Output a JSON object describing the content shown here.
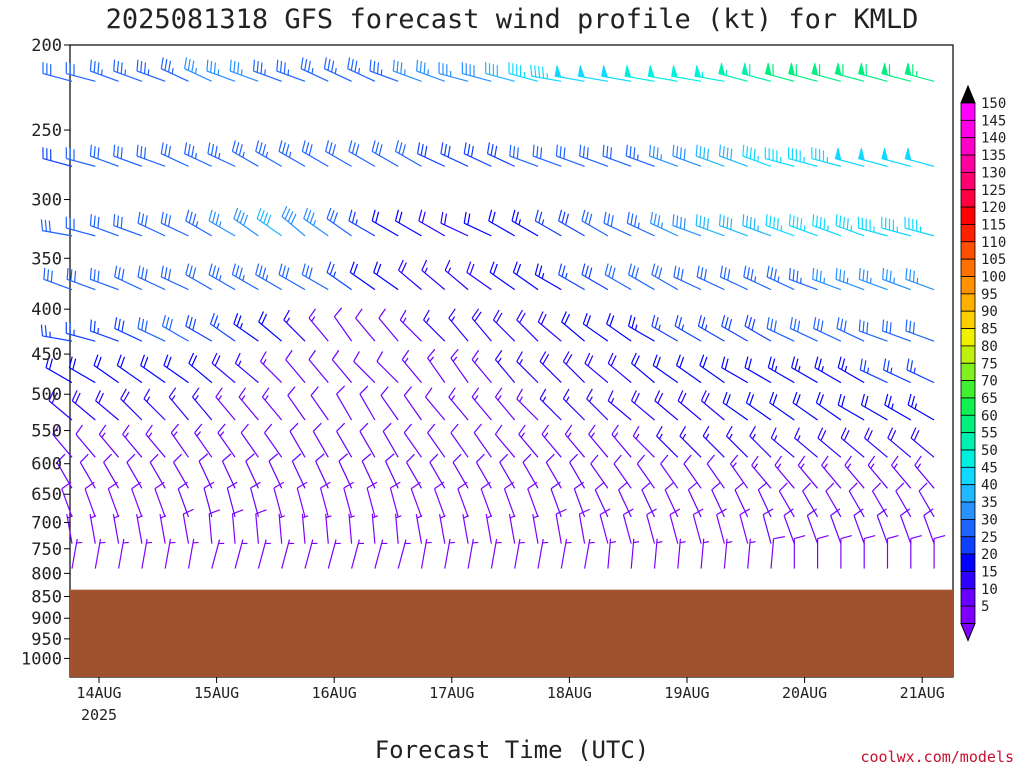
{
  "chart_data": {
    "type": "wind_profile",
    "title": "2025081318 GFS forecast wind profile (kt) for KMLD",
    "xlabel": "Forecast Time (UTC)",
    "ylabel": "",
    "y_ticks": [
      "200",
      "250",
      "300",
      "350",
      "400",
      "450",
      "500",
      "550",
      "600",
      "650",
      "700",
      "750",
      "800",
      "850",
      "900",
      "950",
      "1000"
    ],
    "x_ticks": [
      "14AUG",
      "15AUG",
      "16AUG",
      "17AUG",
      "18AUG",
      "19AUG",
      "20AUG",
      "21AUG"
    ],
    "x_year": "2025",
    "credit": "coolwx.com/models",
    "colorbar_levels": [
      5,
      10,
      15,
      20,
      25,
      30,
      35,
      40,
      45,
      50,
      55,
      60,
      65,
      70,
      75,
      80,
      85,
      90,
      95,
      100,
      105,
      110,
      115,
      120,
      125,
      130,
      135,
      140,
      145,
      150
    ],
    "colorbar_colors": [
      "#8000ff",
      "#6a00ff",
      "#3000ff",
      "#0000ff",
      "#1040ff",
      "#1e64ff",
      "#2890ff",
      "#20b8ff",
      "#10d8ff",
      "#00f0e0",
      "#00f0b0",
      "#00f080",
      "#10f050",
      "#40f030",
      "#80f020",
      "#c0f010",
      "#f0f000",
      "#ffd000",
      "#ffb000",
      "#ff9000",
      "#ff7000",
      "#ff5000",
      "#ff2000",
      "#ff0000",
      "#ff0040",
      "#ff0070",
      "#ff00a0",
      "#ff00c8",
      "#ff00e8",
      "#ff00ff"
    ],
    "ground_color": "#a0522d",
    "surface_pressure_hpa": 835,
    "pressure_levels": [
      220,
      275,
      330,
      380,
      435,
      485,
      535,
      590,
      640,
      690,
      740,
      790
    ],
    "barbs": [
      {
        "p": 220,
        "dir": [
          285,
          285,
          290,
          290,
          290,
          295,
          295,
          290,
          290,
          290,
          290,
          295,
          295,
          295,
          290,
          290,
          290,
          285,
          285,
          285,
          285,
          280,
          280,
          280,
          280,
          280,
          280,
          280,
          280,
          285,
          285,
          285,
          285,
          285,
          285,
          285,
          285,
          285,
          285
        ],
        "spd": [
          30,
          32,
          33,
          33,
          34,
          34,
          35,
          35,
          35,
          34,
          34,
          34,
          33,
          33,
          33,
          35,
          36,
          37,
          38,
          40,
          45,
          47,
          48,
          48,
          48,
          50,
          50,
          52,
          54,
          56,
          58,
          60,
          60,
          60,
          60,
          62,
          62,
          63,
          65
        ]
      },
      {
        "p": 275,
        "dir": [
          285,
          285,
          290,
          290,
          290,
          295,
          295,
          295,
          300,
          300,
          300,
          300,
          300,
          300,
          300,
          300,
          295,
          295,
          295,
          295,
          290,
          290,
          290,
          290,
          290,
          290,
          290,
          290,
          290,
          290,
          290,
          285,
          285,
          285,
          285,
          285,
          285,
          285,
          285
        ],
        "spd": [
          28,
          30,
          30,
          32,
          32,
          32,
          33,
          33,
          34,
          34,
          34,
          32,
          32,
          30,
          30,
          30,
          28,
          28,
          28,
          28,
          30,
          30,
          30,
          32,
          32,
          34,
          36,
          38,
          40,
          42,
          45,
          46,
          46,
          47,
          48,
          48,
          48,
          48,
          50
        ]
      },
      {
        "p": 330,
        "dir": [
          280,
          285,
          290,
          290,
          295,
          295,
          300,
          300,
          305,
          305,
          310,
          305,
          305,
          300,
          300,
          300,
          300,
          295,
          295,
          300,
          300,
          300,
          300,
          300,
          295,
          295,
          295,
          290,
          290,
          290,
          290,
          290,
          290,
          290,
          290,
          285,
          285,
          285,
          285
        ],
        "spd": [
          30,
          30,
          30,
          30,
          32,
          32,
          34,
          36,
          38,
          40,
          38,
          35,
          30,
          25,
          22,
          20,
          18,
          18,
          20,
          22,
          24,
          26,
          28,
          30,
          32,
          34,
          36,
          38,
          40,
          42,
          44,
          45,
          45,
          46,
          46,
          46,
          46,
          45,
          45
        ]
      },
      {
        "p": 380,
        "dir": [
          290,
          290,
          290,
          295,
          295,
          295,
          300,
          300,
          300,
          300,
          300,
          300,
          305,
          305,
          305,
          310,
          310,
          310,
          305,
          305,
          305,
          300,
          300,
          300,
          300,
          300,
          300,
          295,
          295,
          295,
          295,
          295,
          290,
          290,
          290,
          290,
          290,
          290,
          290
        ],
        "spd": [
          30,
          30,
          30,
          30,
          32,
          32,
          32,
          33,
          34,
          34,
          32,
          30,
          26,
          22,
          20,
          18,
          15,
          15,
          18,
          20,
          22,
          24,
          26,
          28,
          30,
          30,
          30,
          32,
          32,
          32,
          34,
          34,
          34,
          36,
          36,
          36,
          36,
          36,
          36
        ]
      },
      {
        "p": 435,
        "dir": [
          280,
          285,
          290,
          295,
          295,
          300,
          300,
          305,
          305,
          310,
          315,
          320,
          325,
          320,
          320,
          315,
          315,
          320,
          320,
          315,
          315,
          310,
          310,
          305,
          305,
          300,
          300,
          300,
          300,
          300,
          300,
          295,
          295,
          295,
          295,
          290,
          290,
          290,
          290
        ],
        "spd": [
          25,
          25,
          26,
          28,
          30,
          30,
          28,
          26,
          24,
          20,
          16,
          14,
          12,
          12,
          12,
          14,
          15,
          16,
          18,
          18,
          18,
          18,
          20,
          20,
          22,
          24,
          26,
          26,
          26,
          28,
          28,
          30,
          30,
          30,
          30,
          32,
          32,
          32,
          32
        ]
      },
      {
        "p": 485,
        "dir": [
          300,
          300,
          305,
          305,
          305,
          305,
          310,
          310,
          310,
          315,
          320,
          320,
          320,
          315,
          315,
          320,
          325,
          325,
          320,
          320,
          315,
          315,
          315,
          310,
          310,
          310,
          305,
          305,
          305,
          300,
          300,
          300,
          300,
          300,
          300,
          295,
          295,
          295,
          295
        ],
        "spd": [
          20,
          20,
          20,
          20,
          22,
          22,
          20,
          18,
          16,
          14,
          12,
          12,
          12,
          12,
          12,
          14,
          14,
          14,
          14,
          16,
          16,
          18,
          18,
          18,
          18,
          20,
          20,
          20,
          22,
          22,
          22,
          24,
          24,
          24,
          24,
          26,
          26,
          26,
          26
        ]
      },
      {
        "p": 535,
        "dir": [
          310,
          310,
          310,
          315,
          315,
          320,
          320,
          320,
          320,
          320,
          325,
          325,
          330,
          330,
          325,
          325,
          320,
          320,
          320,
          320,
          315,
          315,
          315,
          315,
          310,
          310,
          310,
          310,
          310,
          305,
          305,
          305,
          305,
          305,
          300,
          300,
          300,
          300,
          300
        ],
        "spd": [
          18,
          18,
          18,
          18,
          16,
          16,
          16,
          14,
          14,
          14,
          12,
          12,
          12,
          12,
          12,
          12,
          12,
          14,
          14,
          14,
          14,
          16,
          16,
          16,
          16,
          18,
          18,
          18,
          18,
          20,
          20,
          20,
          22,
          22,
          22,
          22,
          24,
          24,
          24
        ]
      },
      {
        "p": 590,
        "dir": [
          320,
          320,
          320,
          320,
          320,
          325,
          325,
          325,
          325,
          325,
          330,
          330,
          330,
          330,
          330,
          325,
          325,
          325,
          325,
          320,
          320,
          320,
          320,
          320,
          320,
          315,
          315,
          315,
          315,
          315,
          315,
          310,
          310,
          310,
          310,
          310,
          310,
          310,
          310
        ],
        "spd": [
          12,
          12,
          14,
          14,
          14,
          14,
          14,
          14,
          12,
          12,
          12,
          12,
          12,
          12,
          12,
          12,
          12,
          12,
          12,
          12,
          14,
          14,
          14,
          14,
          14,
          14,
          16,
          16,
          16,
          16,
          16,
          16,
          16,
          18,
          18,
          18,
          18,
          18,
          18
        ]
      },
      {
        "p": 640,
        "dir": [
          330,
          330,
          330,
          330,
          330,
          330,
          335,
          335,
          335,
          335,
          335,
          335,
          335,
          335,
          335,
          330,
          330,
          330,
          330,
          330,
          330,
          330,
          330,
          325,
          325,
          325,
          325,
          325,
          325,
          325,
          320,
          320,
          320,
          320,
          320,
          320,
          320,
          320,
          320
        ],
        "spd": [
          10,
          10,
          10,
          10,
          10,
          12,
          12,
          12,
          12,
          10,
          10,
          10,
          10,
          10,
          10,
          10,
          10,
          10,
          10,
          10,
          10,
          12,
          12,
          12,
          12,
          12,
          12,
          12,
          12,
          14,
          14,
          14,
          14,
          14,
          14,
          14,
          14,
          14,
          14
        ]
      },
      {
        "p": 690,
        "dir": [
          340,
          340,
          340,
          340,
          340,
          340,
          345,
          345,
          345,
          345,
          345,
          345,
          345,
          345,
          345,
          340,
          340,
          340,
          340,
          340,
          340,
          340,
          340,
          335,
          335,
          335,
          335,
          335,
          335,
          335,
          335,
          330,
          330,
          330,
          330,
          330,
          330,
          330,
          330
        ],
        "spd": [
          8,
          8,
          8,
          8,
          8,
          10,
          10,
          10,
          10,
          8,
          8,
          8,
          8,
          8,
          8,
          8,
          8,
          8,
          8,
          8,
          8,
          10,
          10,
          10,
          10,
          10,
          10,
          10,
          10,
          10,
          12,
          12,
          12,
          12,
          12,
          12,
          12,
          12,
          12
        ]
      },
      {
        "p": 740,
        "dir": [
          350,
          350,
          350,
          350,
          350,
          350,
          355,
          355,
          355,
          355,
          355,
          355,
          355,
          355,
          355,
          350,
          350,
          350,
          350,
          350,
          350,
          350,
          350,
          345,
          345,
          345,
          345,
          345,
          345,
          345,
          345,
          340,
          340,
          340,
          340,
          340,
          340,
          340,
          340
        ],
        "spd": [
          6,
          6,
          6,
          6,
          6,
          8,
          8,
          8,
          8,
          6,
          6,
          6,
          6,
          6,
          6,
          6,
          6,
          6,
          6,
          6,
          6,
          8,
          8,
          8,
          8,
          8,
          8,
          8,
          8,
          8,
          10,
          10,
          10,
          10,
          10,
          10,
          10,
          10,
          10
        ]
      },
      {
        "p": 790,
        "dir": [
          10,
          10,
          10,
          10,
          10,
          10,
          15,
          15,
          15,
          15,
          15,
          15,
          15,
          15,
          15,
          10,
          10,
          10,
          10,
          10,
          10,
          10,
          10,
          5,
          5,
          5,
          5,
          5,
          5,
          5,
          5,
          0,
          0,
          0,
          0,
          0,
          0,
          0,
          0
        ],
        "spd": [
          5,
          5,
          5,
          5,
          5,
          6,
          6,
          6,
          6,
          5,
          5,
          5,
          5,
          5,
          5,
          5,
          5,
          5,
          5,
          5,
          5,
          6,
          6,
          6,
          6,
          6,
          6,
          6,
          6,
          6,
          8,
          8,
          8,
          8,
          8,
          8,
          8,
          8,
          8
        ]
      }
    ]
  }
}
